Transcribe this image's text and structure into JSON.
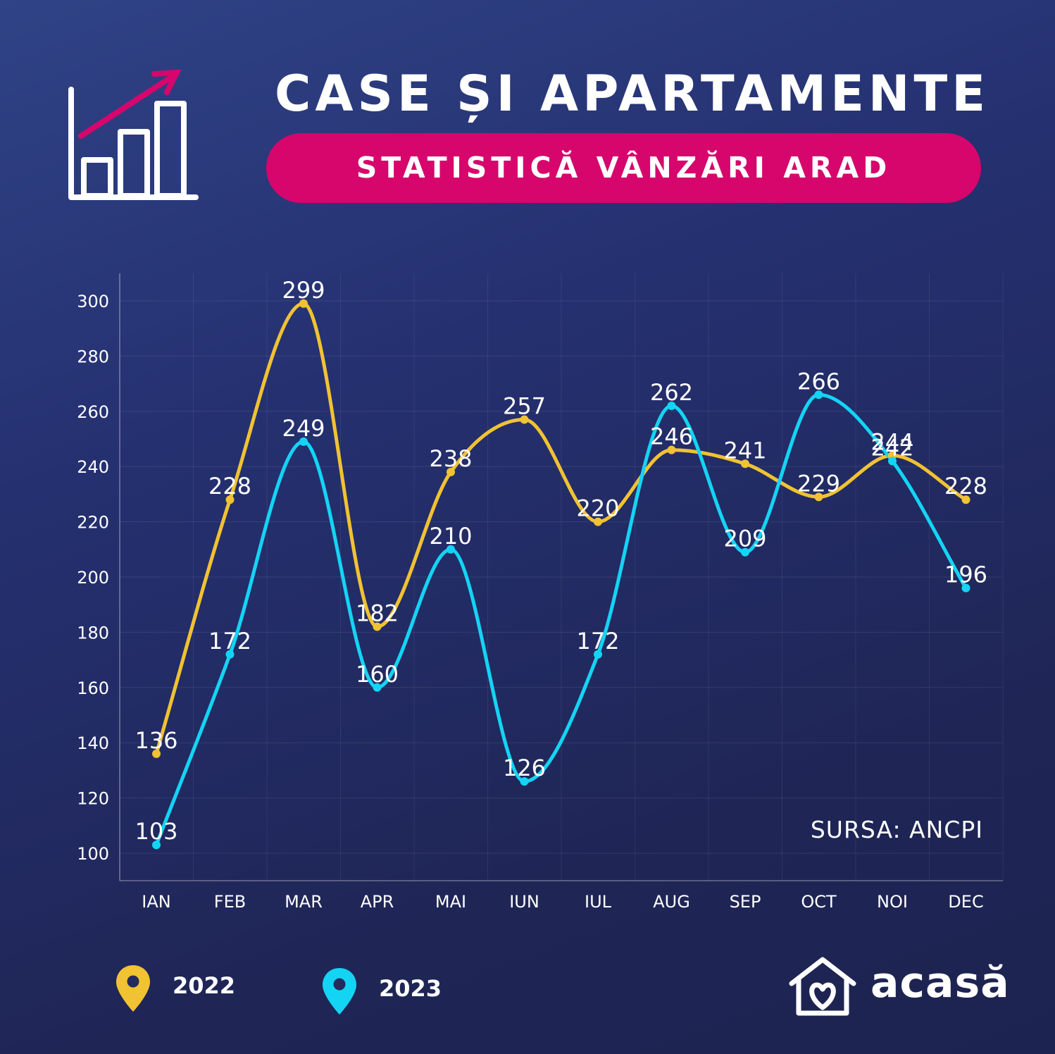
{
  "header": {
    "title": "CASE ȘI APARTAMENTE",
    "subtitle": "STATISTICĂ VÂNZĂRI ARAD",
    "icon": "bar-chart-growth-icon"
  },
  "source": "SURSA: ANCPI",
  "brand": {
    "name": "acasă",
    "icon": "house-heart-icon"
  },
  "colors": {
    "series_2022": "#f1c232",
    "series_2023": "#14d4f4",
    "pill": "#d6066c",
    "arrow": "#d6066c"
  },
  "legend": [
    {
      "label": "2022",
      "color": "#f1c232",
      "icon": "map-pin-icon"
    },
    {
      "label": "2023",
      "color": "#14d4f4",
      "icon": "map-pin-icon"
    }
  ],
  "chart_data": {
    "type": "line",
    "categories": [
      "IAN",
      "FEB",
      "MAR",
      "APR",
      "MAI",
      "IUN",
      "IUL",
      "AUG",
      "SEP",
      "OCT",
      "NOI",
      "DEC"
    ],
    "series": [
      {
        "name": "2022",
        "color": "#f1c232",
        "values": [
          136,
          228,
          299,
          182,
          238,
          257,
          220,
          246,
          241,
          229,
          244,
          228
        ]
      },
      {
        "name": "2023",
        "color": "#14d4f4",
        "values": [
          103,
          172,
          249,
          160,
          210,
          126,
          172,
          262,
          209,
          266,
          242,
          196
        ]
      }
    ],
    "title": "",
    "xlabel": "",
    "ylabel": "",
    "ylim": [
      100,
      300
    ],
    "yticks": [
      100,
      120,
      140,
      160,
      180,
      200,
      220,
      240,
      260,
      280,
      300
    ],
    "grid": true,
    "smooth": true,
    "data_labels": true,
    "legend_position": "bottom-left"
  }
}
